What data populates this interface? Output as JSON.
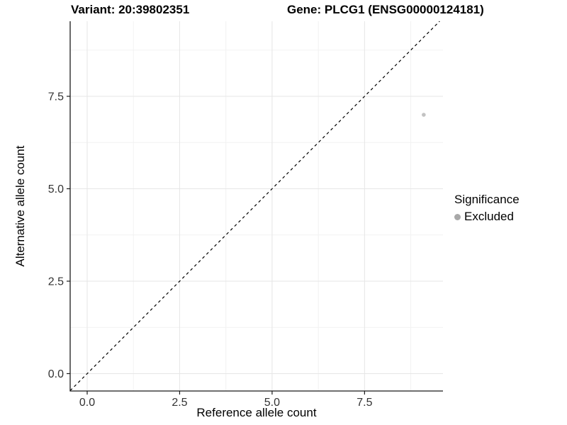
{
  "figure": {
    "title_left": "Variant: 20:39802351",
    "title_right": "Gene: PLCG1 (ENSG00000124181)"
  },
  "chart_data": {
    "type": "scatter",
    "title": "Variant: 20:39802351 — Gene: PLCG1 (ENSG00000124181)",
    "xlabel": "Reference allele count",
    "ylabel": "Alternative allele count",
    "xlim": [
      -0.46,
      9.62
    ],
    "ylim": [
      -0.47,
      9.53
    ],
    "x_ticks": [
      0,
      2.5,
      5,
      7.5
    ],
    "y_ticks": [
      0,
      2.5,
      5,
      7.5
    ],
    "x_tick_labels": [
      "0.0",
      "2.5",
      "5.0",
      "7.5"
    ],
    "y_tick_labels": [
      "0.0",
      "2.5",
      "5.0",
      "7.5"
    ],
    "x_minor_ticks": [
      1.25,
      3.75,
      6.25,
      8.75
    ],
    "y_minor_ticks": [
      1.25,
      3.75,
      6.25,
      8.75
    ],
    "grid": "major+minor",
    "points": [
      {
        "x": 9.1,
        "y": 7.0,
        "series": "Excluded"
      }
    ],
    "identity_line": {
      "slope": 1,
      "intercept": 0,
      "style": "dashed"
    },
    "legend": {
      "title": "Significance",
      "position": "right",
      "items": [
        {
          "label": "Excluded"
        }
      ]
    },
    "colors": {
      "point": "#c3c3c3",
      "legend_key": "#a8a8a8",
      "grid_major": "#e6e6e6",
      "grid_minor": "#f2f2f2",
      "axis_line": "#1a1a1a",
      "tick_text": "#333333",
      "dashed_line": "#000000"
    }
  }
}
